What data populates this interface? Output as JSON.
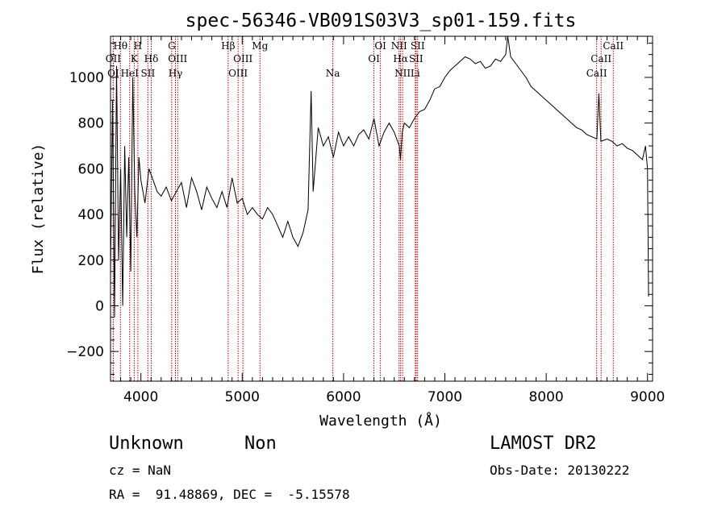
{
  "chart_data": {
    "type": "line",
    "title": "spec-56346-VB091S03V3_sp01-159.fits",
    "xlabel": "Wavelength (Å)",
    "ylabel": "Flux (relative)",
    "xlim": [
      3700,
      9050
    ],
    "ylim": [
      -330,
      1180
    ],
    "xticks": [
      4000,
      5000,
      6000,
      7000,
      8000,
      9000
    ],
    "yticks": [
      -200,
      0,
      200,
      400,
      600,
      800,
      1000
    ],
    "grid": false,
    "legend": "none",
    "line_color": "#000000",
    "marker_color": "#c00000",
    "series": [
      {
        "x": [
          3700,
          3720,
          3740,
          3760,
          3780,
          3800,
          3820,
          3840,
          3860,
          3880,
          3900,
          3920,
          3940,
          3960,
          3980,
          4000,
          4040,
          4080,
          4120,
          4160,
          4200,
          4250,
          4300,
          4350,
          4400,
          4450,
          4500,
          4550,
          4600,
          4650,
          4700,
          4750,
          4800,
          4850,
          4900,
          4950,
          5000,
          5050,
          5100,
          5150,
          5200,
          5250,
          5300,
          5350,
          5400,
          5450,
          5500,
          5550,
          5600,
          5650,
          5680,
          5700,
          5750,
          5800,
          5850,
          5900,
          5950,
          6000,
          6050,
          6100,
          6150,
          6200,
          6250,
          6300,
          6350,
          6400,
          6450,
          6500,
          6550,
          6562,
          6580,
          6600,
          6650,
          6700,
          6750,
          6800,
          6850,
          6900,
          6950,
          7000,
          7050,
          7100,
          7150,
          7200,
          7250,
          7300,
          7350,
          7400,
          7450,
          7500,
          7550,
          7600,
          7620,
          7650,
          7700,
          7750,
          7800,
          7850,
          7900,
          7950,
          8000,
          8050,
          8100,
          8150,
          8200,
          8250,
          8300,
          8350,
          8400,
          8450,
          8500,
          8520,
          8540,
          8600,
          8650,
          8700,
          8750,
          8800,
          8850,
          8900,
          8950,
          8980,
          9000,
          9010
        ],
        "y": [
          150,
          900,
          -50,
          1050,
          200,
          600,
          0,
          700,
          300,
          650,
          150,
          1000,
          500,
          300,
          650,
          550,
          450,
          600,
          550,
          500,
          480,
          520,
          460,
          500,
          540,
          430,
          560,
          500,
          420,
          520,
          470,
          430,
          500,
          430,
          560,
          450,
          470,
          400,
          430,
          400,
          380,
          430,
          400,
          350,
          300,
          370,
          300,
          260,
          320,
          420,
          940,
          500,
          780,
          700,
          740,
          650,
          760,
          700,
          740,
          700,
          750,
          770,
          730,
          820,
          700,
          760,
          800,
          760,
          700,
          640,
          760,
          800,
          780,
          820,
          850,
          860,
          900,
          950,
          960,
          1000,
          1030,
          1050,
          1070,
          1090,
          1080,
          1060,
          1070,
          1040,
          1050,
          1080,
          1070,
          1100,
          1180,
          1090,
          1060,
          1030,
          1000,
          960,
          940,
          920,
          900,
          880,
          860,
          840,
          820,
          800,
          780,
          770,
          750,
          740,
          730,
          930,
          720,
          730,
          720,
          700,
          710,
          690,
          680,
          660,
          640,
          700,
          600,
          40
        ]
      }
    ],
    "spectral_lines": [
      {
        "name": "Hθ",
        "x": 3798,
        "row": 1
      },
      {
        "name": "OII",
        "x": 3727,
        "row": 2
      },
      {
        "name": "OI",
        "x": 3727,
        "row": 3
      },
      {
        "name": "H",
        "x": 3970,
        "row": 1
      },
      {
        "name": "K",
        "x": 3934,
        "row": 2
      },
      {
        "name": "HeI",
        "x": 3889,
        "row": 3
      },
      {
        "name": "Hδ",
        "x": 4102,
        "row": 2
      },
      {
        "name": "SII",
        "x": 4069,
        "row": 3
      },
      {
        "name": "G",
        "x": 4304,
        "row": 1
      },
      {
        "name": "OIII",
        "x": 4363,
        "row": 2
      },
      {
        "name": "Hγ",
        "x": 4341,
        "row": 3
      },
      {
        "name": "Hβ",
        "x": 4861,
        "row": 1
      },
      {
        "name": "OIII",
        "x": 5007,
        "row": 2
      },
      {
        "name": "OIII",
        "x": 4959,
        "row": 3
      },
      {
        "name": "Mg",
        "x": 5175,
        "row": 1
      },
      {
        "name": "Na",
        "x": 5894,
        "row": 3
      },
      {
        "name": "OI",
        "x": 6364,
        "row": 1
      },
      {
        "name": "OI",
        "x": 6300,
        "row": 2
      },
      {
        "name": "NII",
        "x": 6548,
        "row": 1
      },
      {
        "name": "Hα",
        "x": 6563,
        "row": 2
      },
      {
        "name": "NII",
        "x": 6583,
        "row": 3
      },
      {
        "name": "SII",
        "x": 6731,
        "row": 1
      },
      {
        "name": "SII",
        "x": 6716,
        "row": 2
      },
      {
        "name": "Li",
        "x": 6708,
        "row": 3
      },
      {
        "name": "CaII",
        "x": 8662,
        "row": 1
      },
      {
        "name": "CaII",
        "x": 8542,
        "row": 2
      },
      {
        "name": "CaII",
        "x": 8498,
        "row": 3
      }
    ]
  },
  "info": {
    "classification": "Unknown",
    "subclass": "Non",
    "cz": "cz = NaN",
    "coords": "RA =  91.48869, DEC =  -5.15578",
    "survey": "LAMOST DR2",
    "obs_date": "Obs-Date: 20130222"
  }
}
